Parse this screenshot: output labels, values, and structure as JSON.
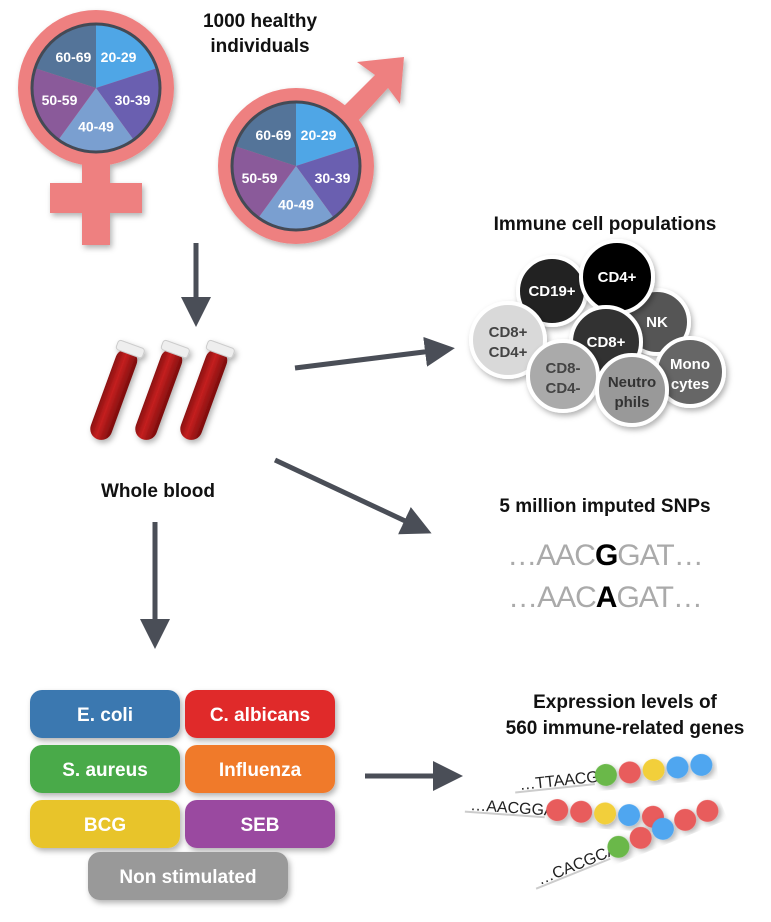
{
  "cohort": {
    "title_line1": "1000 healthy",
    "title_line2": "individuals",
    "age_groups": [
      "20-29",
      "30-39",
      "40-49",
      "50-59",
      "60-69"
    ],
    "age_colors": [
      "#4fa6e6",
      "#6a5fb0",
      "#7a9fd0",
      "#8a5a9a",
      "#547499"
    ],
    "symbol_color": "#ee8080"
  },
  "sample": {
    "label": "Whole blood"
  },
  "immune_cells": {
    "title": "Immune cell populations",
    "cells": [
      {
        "line1": "NK",
        "line2": "",
        "fill": "#555555",
        "text": "#ffffff"
      },
      {
        "line1": "CD19+",
        "line2": "",
        "fill": "#222222",
        "text": "#ffffff"
      },
      {
        "line1": "CD4+",
        "line2": "",
        "fill": "#000000",
        "text": "#ffffff"
      },
      {
        "line1": "CD8+",
        "line2": "",
        "fill": "#333333",
        "text": "#ffffff"
      },
      {
        "line1": "CD8+",
        "line2": "CD4+",
        "fill": "#d9d9d9",
        "text": "#444444"
      },
      {
        "line1": "Mono",
        "line2": "cytes",
        "fill": "#666666",
        "text": "#ffffff"
      },
      {
        "line1": "CD8-",
        "line2": "CD4-",
        "fill": "#aaaaaa",
        "text": "#444444"
      },
      {
        "line1": "Neutro",
        "line2": "phils",
        "fill": "#999999",
        "text": "#333333"
      }
    ]
  },
  "snps": {
    "title": "5 million imputed SNPs",
    "seq1": {
      "pre": "…AAC",
      "allele": "G",
      "post": "GAT…"
    },
    "seq2": {
      "pre": "…AAC",
      "allele": "A",
      "post": "GAT…"
    }
  },
  "stimuli": [
    {
      "label": "E. coli",
      "color": "#3a78b0"
    },
    {
      "label": "C. albicans",
      "color": "#e02a2a"
    },
    {
      "label": "S. aureus",
      "color": "#4aaa4a"
    },
    {
      "label": "Influenza",
      "color": "#f07a2a"
    },
    {
      "label": "BCG",
      "color": "#e8c42a"
    },
    {
      "label": "SEB",
      "color": "#9a4aa0"
    },
    {
      "label": "Non stimulated",
      "color": "#999999"
    }
  ],
  "expression": {
    "title_line1": "Expression levels of",
    "title_line2": "560 immune-related genes",
    "rows": [
      {
        "seq": "…TTAACGG",
        "beads": [
          "#6ab84a",
          "#e85c5c",
          "#f2cf3a",
          "#4fa6f0",
          "#4fa6f0"
        ]
      },
      {
        "seq": "…AACGGAT",
        "beads": [
          "#e85c5c",
          "#e85c5c",
          "#f2cf3a",
          "#4fa6f0",
          "#e85c5c"
        ]
      },
      {
        "seq": "…CACGCAA",
        "beads": [
          "#6ab84a",
          "#e85c5c",
          "#4fa6f0",
          "#e85c5c",
          "#e85c5c"
        ]
      }
    ]
  },
  "arrow_color": "#4a4e57"
}
